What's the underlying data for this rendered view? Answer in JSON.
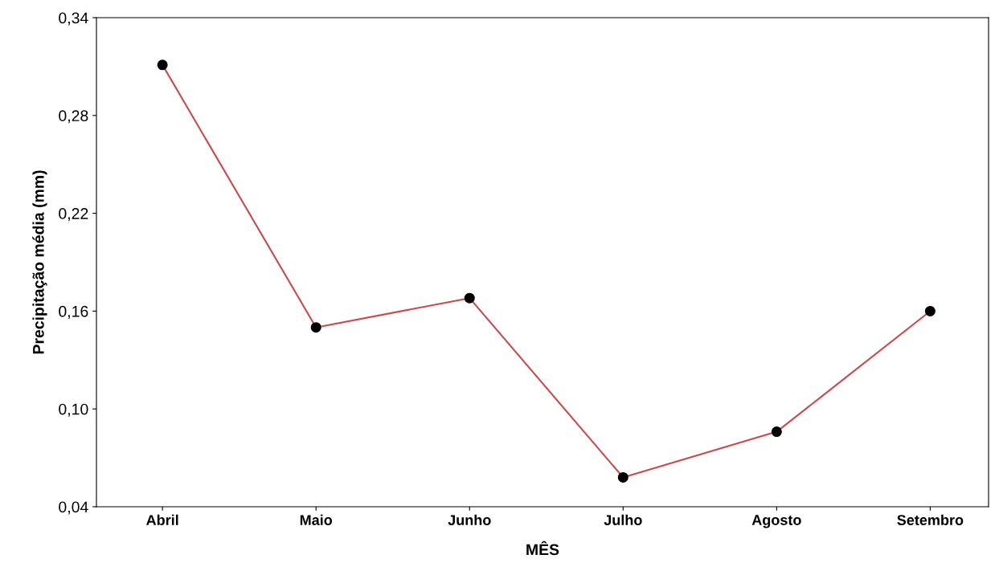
{
  "chart_data": {
    "type": "line",
    "xlabel": "MÊS",
    "ylabel": "Precipitação média (mm)",
    "categories": [
      "Abril",
      "Maio",
      "Junho",
      "Julho",
      "Agosto",
      "Setembro"
    ],
    "series": [
      {
        "color": "#d0474a",
        "values": [
          0.311,
          0.15,
          0.168,
          0.058,
          0.086,
          0.16
        ]
      }
    ],
    "marker": "circle",
    "line_style": "solid",
    "grid": false,
    "legend": false,
    "ylim": [
      0.04,
      0.34
    ],
    "yticks": [
      {
        "value": 0.04,
        "label": "0,04"
      },
      {
        "value": 0.1,
        "label": "0,10"
      },
      {
        "value": 0.16,
        "label": "0,16"
      },
      {
        "value": 0.22,
        "label": "0,22"
      },
      {
        "value": 0.28,
        "label": "0,28"
      },
      {
        "value": 0.34,
        "label": "0,34"
      }
    ]
  }
}
